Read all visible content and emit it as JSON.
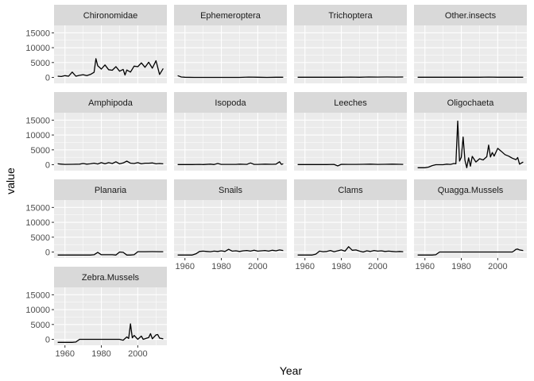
{
  "chart_data": {
    "type": "line",
    "layout": "facet-wrap",
    "ncol": 4,
    "xlabel": "Year",
    "ylabel": "value",
    "xlim": [
      1954,
      2016
    ],
    "ylim": [
      -2000,
      17500
    ],
    "x_ticks": [
      1960,
      1980,
      2000
    ],
    "y_ticks": [
      0,
      5000,
      10000,
      15000
    ],
    "y_tick_labels": [
      "0",
      "5000",
      "10000",
      "15000"
    ],
    "x_tick_labels": [
      "1960",
      "1980",
      "2000"
    ],
    "colors": {
      "panel_bg": "#ebebeb",
      "strip_bg": "#d9d9d9",
      "grid": "#ffffff",
      "line": "#000000"
    },
    "panels": [
      {
        "name": "Chironomidae",
        "x": [
          1956,
          1958,
          1960,
          1962,
          1964,
          1966,
          1968,
          1970,
          1972,
          1974,
          1976,
          1977,
          1978,
          1980,
          1982,
          1984,
          1986,
          1988,
          1990,
          1992,
          1993,
          1994,
          1996,
          1998,
          2000,
          2002,
          2004,
          2006,
          2008,
          2010,
          2012,
          2014
        ],
        "values": [
          400,
          300,
          600,
          400,
          1800,
          400,
          700,
          900,
          600,
          1000,
          1700,
          6300,
          3900,
          2800,
          4200,
          2600,
          2400,
          3600,
          2100,
          2700,
          800,
          2500,
          1800,
          3800,
          3600,
          4900,
          3400,
          5100,
          3100,
          5600,
          1000,
          3000
        ]
      },
      {
        "name": "Ephemeroptera",
        "x": [
          1956,
          1958,
          1960,
          1965,
          1970,
          1975,
          1980,
          1985,
          1990,
          1995,
          2000,
          2005,
          2010,
          2014
        ],
        "values": [
          600,
          150,
          50,
          0,
          0,
          0,
          0,
          0,
          0,
          100,
          50,
          0,
          50,
          50
        ]
      },
      {
        "name": "Trichoptera",
        "x": [
          1956,
          1960,
          1965,
          1970,
          1975,
          1980,
          1985,
          1990,
          1995,
          2000,
          2005,
          2010,
          2014
        ],
        "values": [
          50,
          50,
          50,
          50,
          50,
          50,
          100,
          50,
          150,
          100,
          150,
          100,
          150
        ]
      },
      {
        "name": "Other.insects",
        "x": [
          1956,
          1960,
          1965,
          1970,
          1975,
          1980,
          1985,
          1990,
          1995,
          2000,
          2005,
          2010,
          2014
        ],
        "values": [
          50,
          50,
          50,
          50,
          50,
          50,
          50,
          50,
          100,
          50,
          50,
          50,
          50
        ]
      },
      {
        "name": "Amphipoda",
        "x": [
          1956,
          1958,
          1960,
          1964,
          1968,
          1970,
          1972,
          1974,
          1976,
          1978,
          1980,
          1982,
          1984,
          1986,
          1988,
          1990,
          1992,
          1994,
          1996,
          1998,
          2000,
          2002,
          2004,
          2006,
          2008,
          2010,
          2012,
          2014
        ],
        "values": [
          300,
          200,
          100,
          150,
          200,
          400,
          200,
          300,
          500,
          250,
          700,
          300,
          700,
          400,
          1000,
          300,
          600,
          1200,
          500,
          400,
          700,
          300,
          500,
          500,
          600,
          300,
          400,
          300
        ]
      },
      {
        "name": "Isopoda",
        "x": [
          1956,
          1960,
          1964,
          1968,
          1970,
          1974,
          1976,
          1978,
          1980,
          1984,
          1988,
          1990,
          1994,
          1996,
          1998,
          2000,
          2004,
          2008,
          2010,
          2012,
          2013,
          2014
        ],
        "values": [
          50,
          50,
          50,
          100,
          50,
          200,
          50,
          400,
          100,
          100,
          100,
          200,
          100,
          600,
          100,
          100,
          200,
          150,
          200,
          1000,
          100,
          300
        ]
      },
      {
        "name": "Leeches",
        "x": [
          1956,
          1960,
          1964,
          1968,
          1972,
          1976,
          1978,
          1980,
          1984,
          1988,
          1992,
          1996,
          2000,
          2004,
          2008,
          2012,
          2014
        ],
        "values": [
          50,
          50,
          50,
          50,
          50,
          100,
          -400,
          150,
          100,
          100,
          150,
          200,
          100,
          150,
          200,
          150,
          100
        ]
      },
      {
        "name": "Oligochaeta",
        "x": [
          1956,
          1960,
          1962,
          1964,
          1966,
          1970,
          1972,
          1974,
          1976,
          1977,
          1978,
          1979,
          1980,
          1981,
          1982,
          1983,
          1984,
          1985,
          1986,
          1988,
          1990,
          1992,
          1994,
          1995,
          1996,
          1997,
          1998,
          2000,
          2002,
          2004,
          2006,
          2008,
          2010,
          2011,
          2012,
          2014
        ],
        "values": [
          -1000,
          -1000,
          -800,
          -300,
          0,
          0,
          200,
          100,
          400,
          300,
          14700,
          1200,
          2500,
          9300,
          1500,
          -1000,
          2300,
          -500,
          2800,
          900,
          2000,
          1600,
          2700,
          6600,
          2600,
          4100,
          2900,
          5500,
          4500,
          3400,
          2900,
          2200,
          1700,
          2400,
          200,
          900
        ]
      },
      {
        "name": "Planaria",
        "x": [
          1956,
          1960,
          1964,
          1968,
          1972,
          1974,
          1976,
          1978,
          1980,
          1984,
          1986,
          1988,
          1990,
          1992,
          1994,
          1996,
          1998,
          2000,
          2004,
          2008,
          2012,
          2014
        ],
        "values": [
          -1000,
          -1000,
          -1000,
          -1000,
          -1000,
          -1000,
          -900,
          -100,
          -900,
          -900,
          -900,
          -1000,
          0,
          -100,
          -1000,
          -1000,
          -900,
          100,
          100,
          150,
          100,
          100
        ]
      },
      {
        "name": "Snails",
        "x": [
          1956,
          1960,
          1964,
          1966,
          1968,
          1970,
          1972,
          1974,
          1976,
          1978,
          1980,
          1982,
          1984,
          1986,
          1988,
          1990,
          1992,
          1994,
          1996,
          1998,
          2000,
          2002,
          2004,
          2006,
          2008,
          2010,
          2012,
          2014
        ],
        "values": [
          -1000,
          -1000,
          -1000,
          -600,
          200,
          300,
          200,
          100,
          300,
          200,
          400,
          200,
          900,
          300,
          400,
          200,
          400,
          500,
          300,
          600,
          300,
          400,
          500,
          300,
          600,
          400,
          700,
          500
        ]
      },
      {
        "name": "Clams",
        "x": [
          1956,
          1960,
          1964,
          1966,
          1968,
          1970,
          1972,
          1974,
          1976,
          1978,
          1980,
          1982,
          1984,
          1986,
          1988,
          1990,
          1992,
          1994,
          1996,
          1998,
          2000,
          2002,
          2004,
          2006,
          2008,
          2010,
          2012,
          2014
        ],
        "values": [
          -1000,
          -1000,
          -1000,
          -700,
          300,
          100,
          200,
          500,
          100,
          400,
          700,
          300,
          1800,
          600,
          700,
          300,
          0,
          400,
          200,
          500,
          300,
          400,
          200,
          300,
          200,
          100,
          200,
          100
        ]
      },
      {
        "name": "Quagga.Mussels",
        "x": [
          1956,
          1960,
          1964,
          1966,
          1968,
          1970,
          1980,
          1990,
          2000,
          2008,
          2009,
          2010,
          2011,
          2012,
          2014
        ],
        "values": [
          -1000,
          -1000,
          -1000,
          -900,
          0,
          0,
          0,
          0,
          0,
          0,
          400,
          900,
          1000,
          700,
          500
        ]
      },
      {
        "name": "Zebra.Mussels",
        "x": [
          1956,
          1960,
          1964,
          1966,
          1968,
          1980,
          1990,
          1992,
          1994,
          1995,
          1996,
          1997,
          1998,
          2000,
          2002,
          2003,
          2004,
          2006,
          2007,
          2008,
          2010,
          2011,
          2012,
          2014
        ],
        "values": [
          -1000,
          -1000,
          -1000,
          -900,
          0,
          0,
          0,
          -300,
          800,
          300,
          5200,
          500,
          1300,
          0,
          1100,
          0,
          200,
          600,
          1900,
          200,
          1500,
          1600,
          400,
          200
        ]
      }
    ]
  }
}
